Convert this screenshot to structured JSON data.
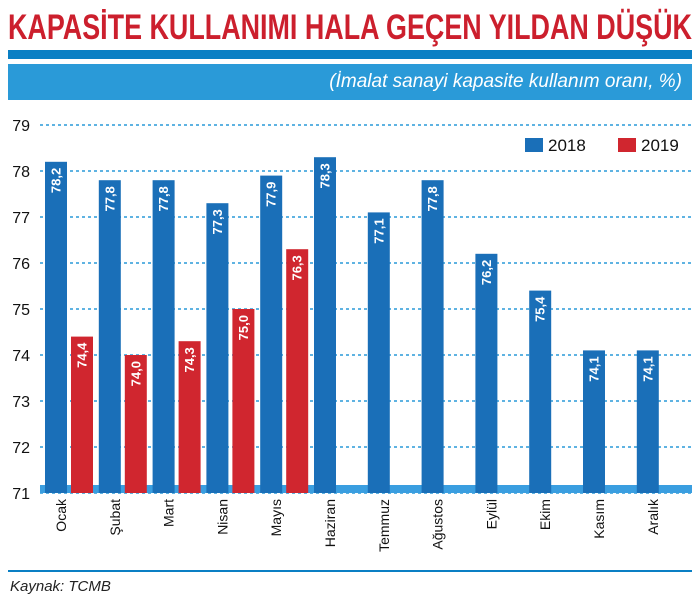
{
  "header": {
    "title": "KAPASİTE KULLANIMI HALA GEÇEN YILDAN DÜŞÜK",
    "subtitle": "(İmalat sanayi kapasite kullanım oranı, %)"
  },
  "footer": {
    "source": "Kaynak: TCMB"
  },
  "colors": {
    "series_2018": "#1a6fb8",
    "series_2019": "#d0262f",
    "title": "#cc1f2d",
    "band": "#2a9ad8",
    "grid": "#2a9ad8"
  },
  "chart_data": {
    "type": "bar",
    "title": "KAPASİTE KULLANIMI HALA GEÇEN YILDAN DÜŞÜK",
    "subtitle": "(İmalat sanayi kapasite kullanım oranı, %)",
    "xlabel": "",
    "ylabel": "",
    "ylim": [
      71,
      79
    ],
    "yticks": [
      "71",
      "72",
      "73",
      "74",
      "75",
      "76",
      "77",
      "78",
      "79"
    ],
    "grid": true,
    "legend": "top-right",
    "categories": [
      "Ocak",
      "Şubat",
      "Mart",
      "Nisan",
      "Mayıs",
      "Haziran",
      "Temmuz",
      "Ağustos",
      "Eylül",
      "Ekim",
      "Kasım",
      "Aralık"
    ],
    "series": [
      {
        "name": "2018",
        "color": "#1a6fb8",
        "values": [
          78.2,
          77.8,
          77.8,
          77.3,
          77.9,
          78.3,
          77.1,
          77.8,
          76.2,
          75.4,
          74.1,
          74.1
        ],
        "labels": [
          "78,2",
          "77,8",
          "77,8",
          "77,3",
          "77,9",
          "78,3",
          "77,1",
          "77,8",
          "76,2",
          "75,4",
          "74,1",
          "74,1"
        ]
      },
      {
        "name": "2019",
        "color": "#d0262f",
        "values": [
          74.4,
          74.0,
          74.3,
          75.0,
          76.3,
          null,
          null,
          null,
          null,
          null,
          null,
          null
        ],
        "labels": [
          "74,4",
          "74,0",
          "74,3",
          "75,0",
          "76,3",
          "",
          "",
          "",
          "",
          "",
          "",
          ""
        ]
      }
    ]
  }
}
